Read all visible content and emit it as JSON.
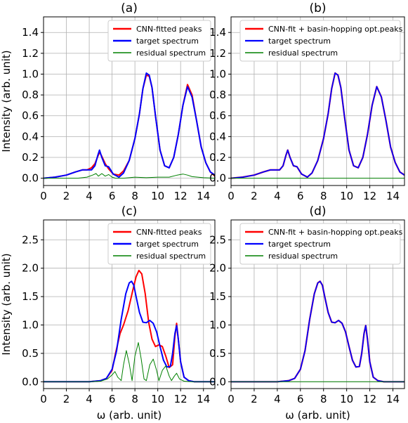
{
  "chart_data": [
    {
      "type": "line",
      "title": "(a)",
      "xlabel": "",
      "ylabel": "Intensity (arb. unit)",
      "xlim": [
        0,
        15
      ],
      "ylim": [
        -0.07,
        1.55
      ],
      "xticks": [
        0,
        2,
        4,
        6,
        8,
        10,
        12,
        14
      ],
      "yticks": [
        0.0,
        0.2,
        0.4,
        0.6,
        0.8,
        1.0,
        1.2,
        1.4
      ],
      "grid": true,
      "legend_position": "top-right",
      "series": [
        {
          "name": "CNN-fitted peaks",
          "color": "#ff0000",
          "x": [
            0,
            1,
            2,
            2.8,
            3.4,
            3.8,
            4.2,
            4.5,
            4.75,
            4.9,
            5.1,
            5.4,
            5.7,
            6.1,
            6.6,
            7.0,
            7.5,
            8.0,
            8.4,
            8.7,
            9.0,
            9.25,
            9.5,
            9.8,
            10.2,
            10.6,
            11.0,
            11.4,
            11.8,
            12.2,
            12.6,
            13.0,
            13.4,
            13.8,
            14.2,
            14.6,
            15
          ],
          "y": [
            0.0,
            0.01,
            0.03,
            0.06,
            0.08,
            0.08,
            0.1,
            0.14,
            0.21,
            0.25,
            0.21,
            0.14,
            0.09,
            0.04,
            0.03,
            0.07,
            0.17,
            0.38,
            0.62,
            0.86,
            0.99,
            0.98,
            0.87,
            0.6,
            0.27,
            0.12,
            0.1,
            0.2,
            0.42,
            0.7,
            0.9,
            0.8,
            0.55,
            0.3,
            0.15,
            0.06,
            0.02
          ]
        },
        {
          "name": "target spectrum",
          "color": "#0000ff",
          "x": [
            0,
            1,
            2,
            2.8,
            3.4,
            3.8,
            4.2,
            4.5,
            4.75,
            4.9,
            5.1,
            5.4,
            5.7,
            6.1,
            6.6,
            7.0,
            7.5,
            8.0,
            8.4,
            8.7,
            9.0,
            9.25,
            9.5,
            9.8,
            10.2,
            10.6,
            11.0,
            11.4,
            11.8,
            12.2,
            12.6,
            13.0,
            13.4,
            13.8,
            14.2,
            14.6,
            15
          ],
          "y": [
            0.0,
            0.01,
            0.03,
            0.06,
            0.08,
            0.08,
            0.08,
            0.12,
            0.22,
            0.27,
            0.2,
            0.12,
            0.11,
            0.04,
            0.01,
            0.05,
            0.17,
            0.38,
            0.62,
            0.86,
            1.01,
            0.99,
            0.87,
            0.6,
            0.27,
            0.12,
            0.1,
            0.2,
            0.42,
            0.7,
            0.88,
            0.78,
            0.55,
            0.3,
            0.15,
            0.06,
            0.03
          ]
        },
        {
          "name": "residual spectrum",
          "color": "#008000",
          "x": [
            0,
            1,
            2,
            3,
            3.8,
            4.3,
            4.6,
            4.8,
            5.1,
            5.4,
            5.7,
            6.0,
            6.3,
            7.0,
            8.0,
            9.0,
            10.0,
            11.0,
            11.7,
            12.2,
            12.6,
            13.0,
            14.0,
            15
          ],
          "y": [
            0.0,
            0.0,
            0.0,
            0.0,
            0.01,
            0.03,
            0.045,
            0.02,
            0.045,
            0.02,
            0.035,
            0.01,
            0.0,
            0.0,
            0.01,
            0.005,
            0.01,
            0.01,
            0.03,
            0.04,
            0.03,
            0.015,
            0.005,
            0.0
          ]
        }
      ]
    },
    {
      "type": "line",
      "title": "(b)",
      "xlabel": "",
      "ylabel": "",
      "xlim": [
        0,
        15
      ],
      "ylim": [
        -0.07,
        1.55
      ],
      "xticks": [
        0,
        2,
        4,
        6,
        8,
        10,
        12,
        14
      ],
      "yticks": [
        0.0,
        0.2,
        0.4,
        0.6,
        0.8,
        1.0,
        1.2,
        1.4
      ],
      "grid": true,
      "legend_position": "top-right",
      "series": [
        {
          "name": "CNN-fit + basin-hopping opt.peaks",
          "color": "#ff0000",
          "x": [
            0,
            1,
            2,
            2.8,
            3.4,
            3.8,
            4.2,
            4.5,
            4.75,
            4.9,
            5.1,
            5.4,
            5.7,
            6.1,
            6.6,
            7.0,
            7.5,
            8.0,
            8.4,
            8.7,
            9.0,
            9.25,
            9.5,
            9.8,
            10.2,
            10.6,
            11.0,
            11.4,
            11.8,
            12.2,
            12.6,
            13.0,
            13.4,
            13.8,
            14.2,
            14.6,
            15
          ],
          "y": [
            0.0,
            0.01,
            0.03,
            0.06,
            0.08,
            0.08,
            0.08,
            0.12,
            0.22,
            0.27,
            0.2,
            0.12,
            0.11,
            0.04,
            0.01,
            0.05,
            0.17,
            0.38,
            0.62,
            0.86,
            1.01,
            0.99,
            0.87,
            0.6,
            0.27,
            0.12,
            0.1,
            0.2,
            0.42,
            0.7,
            0.88,
            0.78,
            0.55,
            0.3,
            0.15,
            0.06,
            0.03
          ]
        },
        {
          "name": "target spectrum",
          "color": "#0000ff",
          "x": [
            0,
            1,
            2,
            2.8,
            3.4,
            3.8,
            4.2,
            4.5,
            4.75,
            4.9,
            5.1,
            5.4,
            5.7,
            6.1,
            6.6,
            7.0,
            7.5,
            8.0,
            8.4,
            8.7,
            9.0,
            9.25,
            9.5,
            9.8,
            10.2,
            10.6,
            11.0,
            11.4,
            11.8,
            12.2,
            12.6,
            13.0,
            13.4,
            13.8,
            14.2,
            14.6,
            15
          ],
          "y": [
            0.0,
            0.01,
            0.03,
            0.06,
            0.08,
            0.08,
            0.08,
            0.12,
            0.22,
            0.27,
            0.2,
            0.12,
            0.11,
            0.04,
            0.01,
            0.05,
            0.17,
            0.38,
            0.62,
            0.86,
            1.01,
            0.99,
            0.87,
            0.6,
            0.27,
            0.12,
            0.1,
            0.2,
            0.42,
            0.7,
            0.88,
            0.78,
            0.55,
            0.3,
            0.15,
            0.06,
            0.03
          ]
        },
        {
          "name": "residual spectrum",
          "color": "#008000",
          "x": [
            0,
            3,
            6,
            9,
            12,
            15
          ],
          "y": [
            0.0,
            0.0,
            0.0,
            0.0,
            0.0,
            0.0
          ]
        }
      ]
    },
    {
      "type": "line",
      "title": "(c)",
      "xlabel": "ω (arb. unit)",
      "ylabel": "Intensity (arb. unit)",
      "xlim": [
        0,
        15
      ],
      "ylim": [
        -0.12,
        2.85
      ],
      "xticks": [
        0,
        2,
        4,
        6,
        8,
        10,
        12,
        14
      ],
      "yticks": [
        0.0,
        0.5,
        1.0,
        1.5,
        2.0,
        2.5
      ],
      "grid": true,
      "legend_position": "top-right",
      "series": [
        {
          "name": "CNN-fitted peaks",
          "color": "#ff0000",
          "x": [
            0,
            2,
            4,
            5,
            5.5,
            6.0,
            6.3,
            6.7,
            7.0,
            7.4,
            7.8,
            8.1,
            8.35,
            8.6,
            8.9,
            9.2,
            9.5,
            9.8,
            10.1,
            10.4,
            10.7,
            11.0,
            11.3,
            11.5,
            11.65,
            11.8,
            12.0,
            12.3,
            12.7,
            13.2,
            14,
            15
          ],
          "y": [
            0.0,
            0.0,
            0.0,
            0.02,
            0.06,
            0.2,
            0.5,
            0.85,
            1.0,
            1.25,
            1.6,
            1.85,
            1.96,
            1.9,
            1.55,
            1.05,
            0.75,
            0.62,
            0.65,
            0.62,
            0.45,
            0.25,
            0.3,
            0.8,
            1.03,
            0.75,
            0.35,
            0.08,
            0.02,
            0.0,
            0.0,
            0.0
          ]
        },
        {
          "name": "target spectrum",
          "color": "#0000ff",
          "x": [
            0,
            2,
            4,
            5,
            5.5,
            6.0,
            6.4,
            6.8,
            7.2,
            7.5,
            7.7,
            7.9,
            8.1,
            8.4,
            8.7,
            9.0,
            9.3,
            9.6,
            9.9,
            10.2,
            10.5,
            10.8,
            11.1,
            11.3,
            11.5,
            11.65,
            11.8,
            12.0,
            12.3,
            12.7,
            13.2,
            14,
            15
          ],
          "y": [
            0.0,
            0.0,
            0.0,
            0.02,
            0.06,
            0.22,
            0.55,
            1.1,
            1.55,
            1.74,
            1.77,
            1.7,
            1.5,
            1.22,
            1.05,
            1.04,
            1.08,
            1.03,
            0.88,
            0.62,
            0.38,
            0.26,
            0.27,
            0.5,
            0.85,
            0.99,
            0.75,
            0.35,
            0.08,
            0.02,
            0.0,
            0.0,
            0.0
          ]
        },
        {
          "name": "residual spectrum",
          "color": "#008000",
          "x": [
            0,
            2,
            4,
            5,
            5.6,
            6.0,
            6.25,
            6.5,
            6.8,
            7.0,
            7.25,
            7.5,
            7.75,
            8.0,
            8.3,
            8.55,
            8.8,
            9.0,
            9.3,
            9.6,
            9.9,
            10.1,
            10.4,
            10.7,
            11.0,
            11.2,
            11.45,
            11.65,
            11.9,
            12.3,
            13,
            14,
            15
          ],
          "y": [
            0.0,
            0.0,
            0.0,
            0.01,
            0.05,
            0.12,
            0.18,
            0.08,
            0.02,
            0.3,
            0.55,
            0.32,
            0.02,
            0.45,
            0.69,
            0.4,
            0.05,
            0.02,
            0.3,
            0.4,
            0.2,
            0.02,
            0.2,
            0.28,
            0.1,
            0.02,
            0.1,
            0.15,
            0.05,
            0.01,
            0.0,
            0.0,
            0.0
          ]
        }
      ]
    },
    {
      "type": "line",
      "title": "(d)",
      "xlabel": "ω (arb. unit)",
      "ylabel": "",
      "xlim": [
        0,
        15
      ],
      "ylim": [
        -0.12,
        2.85
      ],
      "xticks": [
        0,
        2,
        4,
        6,
        8,
        10,
        12,
        14
      ],
      "yticks": [
        0.0,
        0.5,
        1.0,
        1.5,
        2.0,
        2.5
      ],
      "grid": true,
      "legend_position": "top-right",
      "series": [
        {
          "name": "CNN-fit + basin-hopping opt.peaks",
          "color": "#ff0000",
          "x": [
            0,
            2,
            4,
            5,
            5.5,
            6.0,
            6.4,
            6.8,
            7.2,
            7.5,
            7.7,
            7.9,
            8.1,
            8.4,
            8.7,
            9.0,
            9.3,
            9.6,
            9.9,
            10.2,
            10.5,
            10.8,
            11.1,
            11.3,
            11.5,
            11.65,
            11.8,
            12.0,
            12.3,
            12.7,
            13.2,
            14,
            15
          ],
          "y": [
            0.0,
            0.0,
            0.0,
            0.02,
            0.06,
            0.22,
            0.55,
            1.1,
            1.55,
            1.74,
            1.77,
            1.7,
            1.5,
            1.22,
            1.05,
            1.04,
            1.08,
            1.03,
            0.88,
            0.62,
            0.38,
            0.26,
            0.27,
            0.5,
            0.85,
            0.99,
            0.75,
            0.35,
            0.08,
            0.02,
            0.0,
            0.0,
            0.0
          ]
        },
        {
          "name": "target spectrum",
          "color": "#0000ff",
          "x": [
            0,
            2,
            4,
            5,
            5.5,
            6.0,
            6.4,
            6.8,
            7.2,
            7.5,
            7.7,
            7.9,
            8.1,
            8.4,
            8.7,
            9.0,
            9.3,
            9.6,
            9.9,
            10.2,
            10.5,
            10.8,
            11.1,
            11.3,
            11.5,
            11.65,
            11.8,
            12.0,
            12.3,
            12.7,
            13.2,
            14,
            15
          ],
          "y": [
            0.0,
            0.0,
            0.0,
            0.02,
            0.06,
            0.22,
            0.55,
            1.1,
            1.55,
            1.74,
            1.77,
            1.7,
            1.5,
            1.22,
            1.05,
            1.04,
            1.08,
            1.03,
            0.88,
            0.62,
            0.38,
            0.26,
            0.27,
            0.5,
            0.85,
            0.99,
            0.75,
            0.35,
            0.08,
            0.02,
            0.0,
            0.0,
            0.0
          ]
        },
        {
          "name": "residual spectrum",
          "color": "#008000",
          "x": [
            0,
            3,
            6,
            9,
            12,
            15
          ],
          "y": [
            0.0,
            0.0,
            0.0,
            0.0,
            0.0,
            0.0
          ]
        }
      ]
    }
  ]
}
